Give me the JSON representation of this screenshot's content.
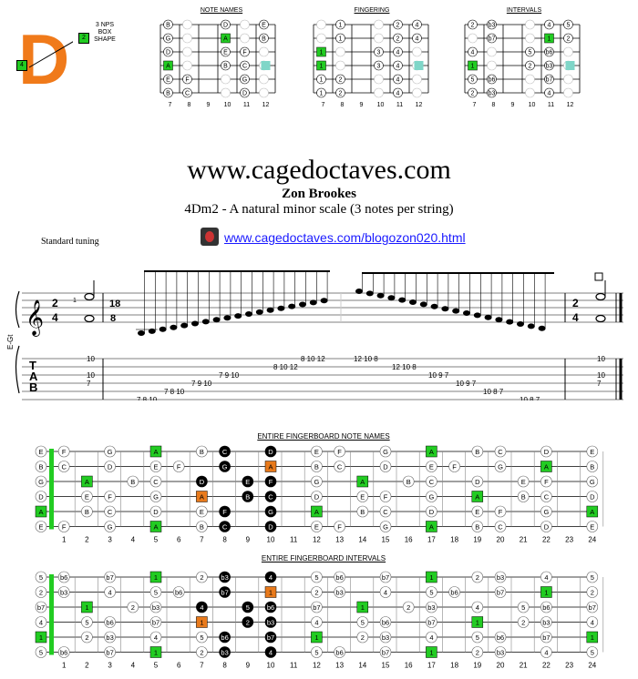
{
  "header": {
    "logo_letter": "D",
    "logo_markers": [
      "2",
      "4"
    ],
    "shape_label": [
      "3 NPS",
      "BOX",
      "SHAPE"
    ]
  },
  "mini_diagrams": {
    "titles": [
      "NOTE NAMES",
      "FINGERING",
      "INTERVALS"
    ],
    "fret_numbers": [
      "7",
      "8",
      "9",
      "10",
      "11",
      "12"
    ],
    "strings": [
      {
        "notes": [
          "B",
          "",
          "D",
          "",
          "E"
        ],
        "fingers": [
          "",
          "1",
          "",
          "2",
          "4"
        ],
        "intervals": [
          "2",
          "b3",
          "",
          "4",
          "5"
        ]
      },
      {
        "notes": [
          "G",
          "",
          "A",
          "",
          "B"
        ],
        "fingers": [
          "",
          "1",
          "",
          "2",
          "4"
        ],
        "intervals": [
          "",
          "b7",
          "",
          "1",
          "2"
        ]
      },
      {
        "notes": [
          "D",
          "",
          "E",
          "F",
          ""
        ],
        "fingers": [
          "1",
          "",
          "3",
          "4",
          ""
        ],
        "intervals": [
          "4",
          "",
          "5",
          "b6",
          ""
        ]
      },
      {
        "notes": [
          "A",
          "",
          "B",
          "C",
          ""
        ],
        "fingers": [
          "1",
          "",
          "3",
          "4",
          ""
        ],
        "intervals": [
          "1",
          "",
          "2",
          "b3",
          ""
        ]
      },
      {
        "notes": [
          "E",
          "F",
          "",
          "G",
          ""
        ],
        "fingers": [
          "1",
          "2",
          "",
          "4",
          ""
        ],
        "intervals": [
          "5",
          "b6",
          "",
          "b7",
          ""
        ]
      },
      {
        "notes": [
          "B",
          "C",
          "",
          "D",
          ""
        ],
        "fingers": [
          "1",
          "2",
          "",
          "4",
          ""
        ],
        "intervals": [
          "2",
          "b3",
          "",
          "4",
          ""
        ]
      }
    ]
  },
  "title": "www.cagedoctaves.com",
  "author": "Zon Brookes",
  "subtitle": "4Dm2 - A natural minor scale (3 notes per string)",
  "tuning": "Standard tuning",
  "link_text": "www.cagedoctaves.com/blogozon020.html",
  "notation": {
    "staff_label": "E-Gt",
    "time_sig_start": [
      "2",
      "4"
    ],
    "tuplet_sig": [
      "18",
      "8"
    ],
    "time_sig_end": [
      "2",
      "4"
    ],
    "measure_number": "1",
    "tab_letters": [
      "T",
      "A",
      "B"
    ]
  },
  "tab": {
    "string1": [
      "10",
      "8 10 12",
      "12 10 8",
      "10"
    ],
    "string2": [
      "",
      "8 10 12",
      "12 10 8",
      ""
    ],
    "string3": [
      "10",
      "7 9 10",
      "10 9 7",
      "10"
    ],
    "string4": [
      "7",
      "7 9 10",
      "10 9 7",
      "7"
    ],
    "string5": [
      "",
      "7 8 10",
      "10 8 7",
      ""
    ],
    "string6": [
      "",
      "7 8 10",
      "10 8 7",
      ""
    ]
  },
  "fingerboard_titles": [
    "ENTIRE FINGERBOARD NOTE NAMES",
    "ENTIRE FINGERBOARD INTERVALS"
  ],
  "fret_numbers": [
    "1",
    "2",
    "3",
    "4",
    "5",
    "6",
    "7",
    "8",
    "9",
    "10",
    "11",
    "12",
    "13",
    "14",
    "15",
    "16",
    "17",
    "18",
    "19",
    "20",
    "21",
    "22",
    "23",
    "24"
  ],
  "colors": {
    "green": "#22cc22",
    "orange": "#e87a1c",
    "black": "#000000",
    "teal": "#7fd6c8"
  }
}
